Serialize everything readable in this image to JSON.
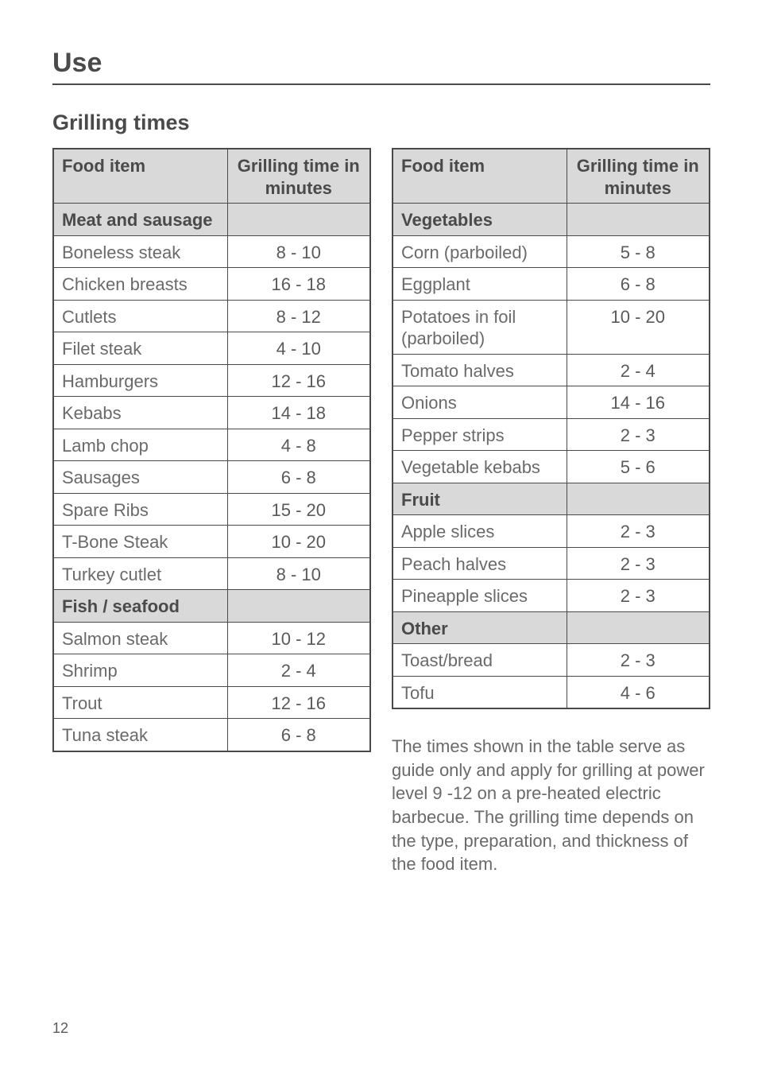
{
  "page_title": "Use",
  "section_title": "Grilling times",
  "page_number": "12",
  "header_food": "Food item",
  "header_time": "Grilling time in minutes",
  "left_rows": [
    {
      "type": "category",
      "label": "Meat and sausage",
      "time": ""
    },
    {
      "type": "item",
      "label": "Boneless steak",
      "time": "8 - 10"
    },
    {
      "type": "item",
      "label": "Chicken breasts",
      "time": "16 - 18"
    },
    {
      "type": "item",
      "label": "Cutlets",
      "time": "8 - 12"
    },
    {
      "type": "item",
      "label": "Filet steak",
      "time": "4 - 10"
    },
    {
      "type": "item",
      "label": "Hamburgers",
      "time": "12 - 16"
    },
    {
      "type": "item",
      "label": "Kebabs",
      "time": "14 - 18"
    },
    {
      "type": "item",
      "label": "Lamb chop",
      "time": "4 - 8"
    },
    {
      "type": "item",
      "label": "Sausages",
      "time": "6 - 8"
    },
    {
      "type": "item",
      "label": "Spare Ribs",
      "time": "15 - 20"
    },
    {
      "type": "item",
      "label": "T-Bone Steak",
      "time": "10 - 20"
    },
    {
      "type": "item",
      "label": "Turkey cutlet",
      "time": "8 - 10"
    },
    {
      "type": "category",
      "label": "Fish / seafood",
      "time": ""
    },
    {
      "type": "item",
      "label": "Salmon steak",
      "time": "10 - 12"
    },
    {
      "type": "item",
      "label": "Shrimp",
      "time": "2 - 4"
    },
    {
      "type": "item",
      "label": "Trout",
      "time": "12 - 16"
    },
    {
      "type": "item",
      "label": "Tuna steak",
      "time": "6 - 8"
    }
  ],
  "right_rows": [
    {
      "type": "category",
      "label": "Vegetables",
      "time": ""
    },
    {
      "type": "item",
      "label": "Corn (parboiled)",
      "time": "5 - 8"
    },
    {
      "type": "item",
      "label": "Eggplant",
      "time": "6 - 8"
    },
    {
      "type": "item",
      "label": "Potatoes in foil (parboiled)",
      "time": "10 - 20"
    },
    {
      "type": "item",
      "label": "Tomato halves",
      "time": "2 - 4"
    },
    {
      "type": "item",
      "label": "Onions",
      "time": "14 - 16"
    },
    {
      "type": "item",
      "label": "Pepper strips",
      "time": "2 - 3"
    },
    {
      "type": "item",
      "label": "Vegetable kebabs",
      "time": "5 - 6"
    },
    {
      "type": "category",
      "label": "Fruit",
      "time": ""
    },
    {
      "type": "item",
      "label": "Apple slices",
      "time": "2 - 3"
    },
    {
      "type": "item",
      "label": "Peach halves",
      "time": "2 - 3"
    },
    {
      "type": "item",
      "label": "Pineapple slices",
      "time": "2 - 3"
    },
    {
      "type": "category",
      "label": "Other",
      "time": ""
    },
    {
      "type": "item",
      "label": "Toast/bread",
      "time": "2 - 3"
    },
    {
      "type": "item",
      "label": "Tofu",
      "time": "4 - 6"
    }
  ],
  "note": "The times shown in the table serve as guide only and apply for grilling at power level 9 -12 on a pre-heated electric barbecue. The grilling time depends on the type, preparation, and thickness of the food item."
}
